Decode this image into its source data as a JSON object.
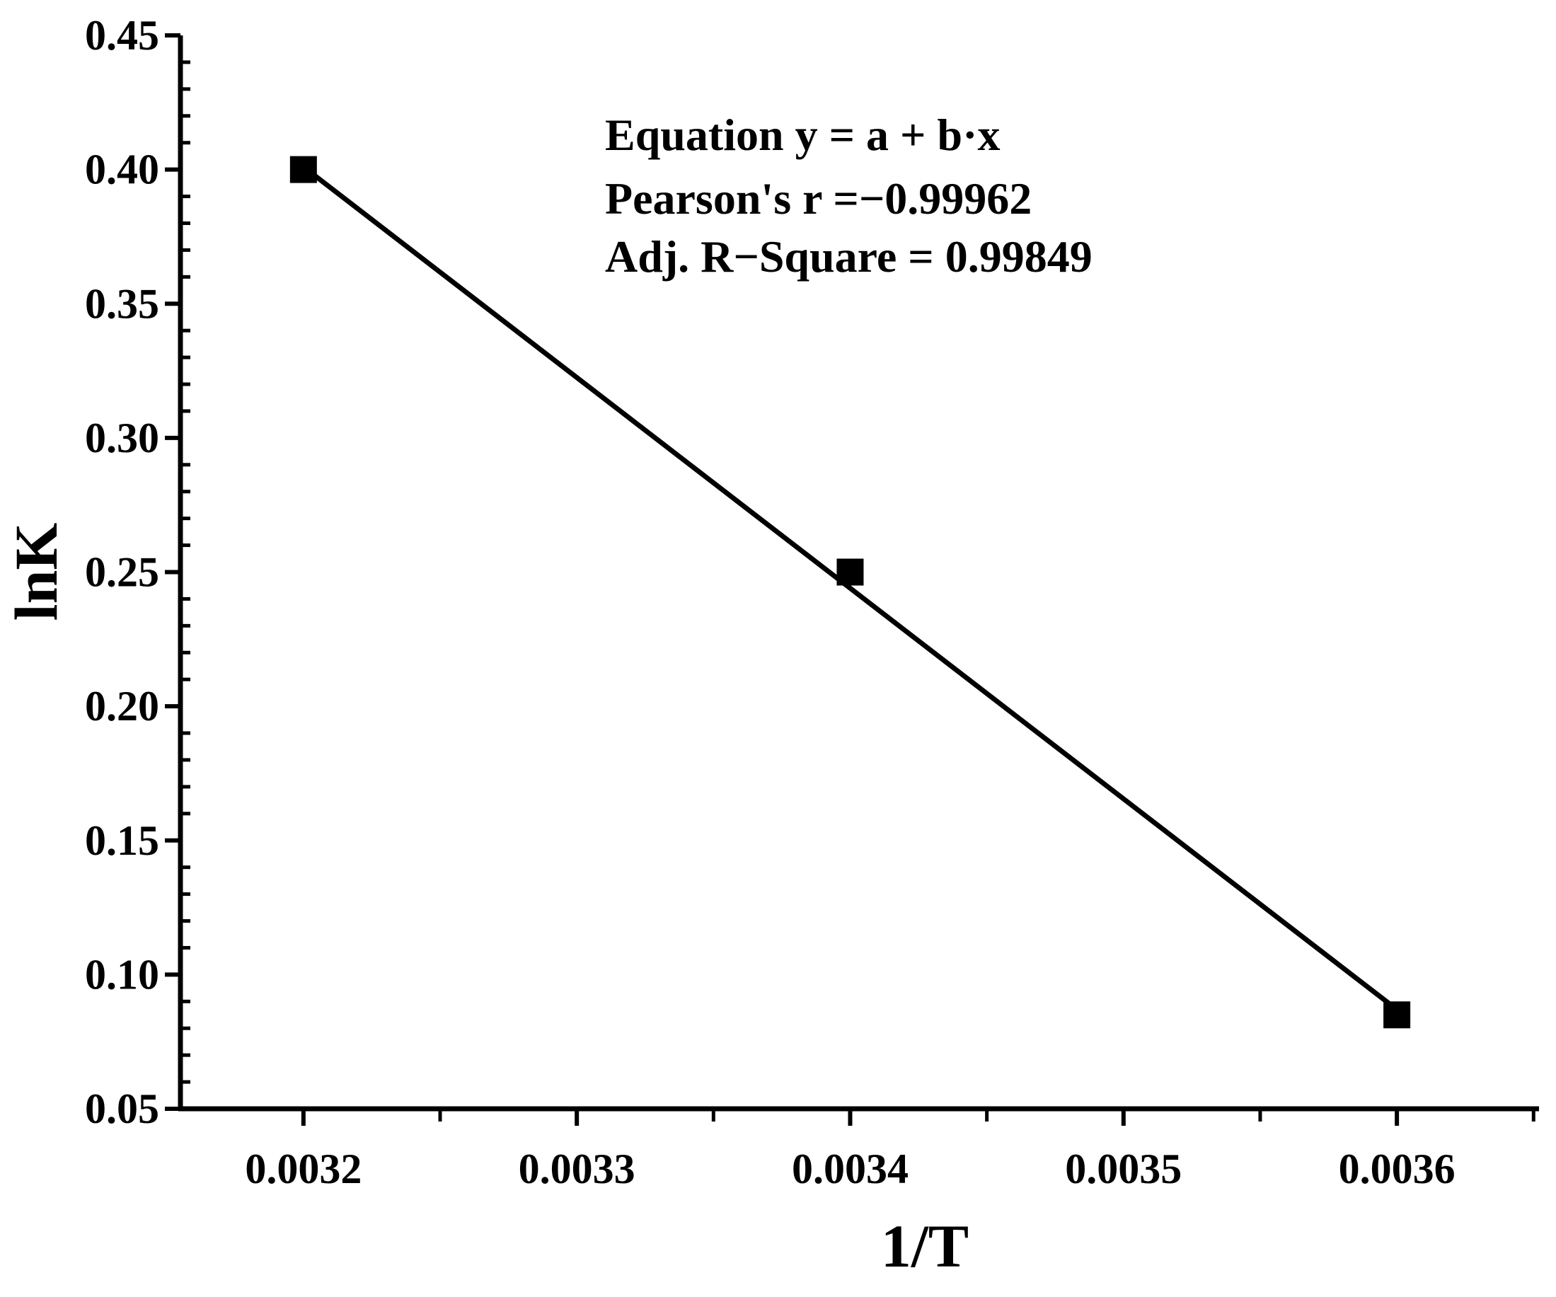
{
  "chart_data": {
    "type": "scatter",
    "xlabel": "1/T",
    "ylabel": "lnK",
    "xlim": [
      0.003155,
      0.003652
    ],
    "ylim": [
      0.05,
      0.45
    ],
    "x_ticks": [
      "0.0032",
      "0.0033",
      "0.0034",
      "0.0035",
      "0.0036"
    ],
    "x_tick_values": [
      0.0032,
      0.0033,
      0.0034,
      0.0035,
      0.0036
    ],
    "y_ticks": [
      "0.05",
      "0.10",
      "0.15",
      "0.20",
      "0.25",
      "0.30",
      "0.35",
      "0.40",
      "0.45"
    ],
    "y_tick_values": [
      0.05,
      0.1,
      0.15,
      0.2,
      0.25,
      0.3,
      0.35,
      0.4,
      0.45
    ],
    "points": [
      {
        "x": 0.0032,
        "y": 0.4
      },
      {
        "x": 0.0034,
        "y": 0.25
      },
      {
        "x": 0.0036,
        "y": 0.085
      }
    ],
    "fit_line": {
      "x": [
        0.0032,
        0.0036
      ],
      "y": [
        0.401,
        0.087
      ]
    },
    "annotation": {
      "line1": "Equation  y = a + b·x",
      "line2": "Pearson's r =−0.99962",
      "line3": "Adj. R−Square = 0.99849"
    },
    "grid": false,
    "colors": {
      "marker": "#000000",
      "line": "#000000"
    }
  }
}
